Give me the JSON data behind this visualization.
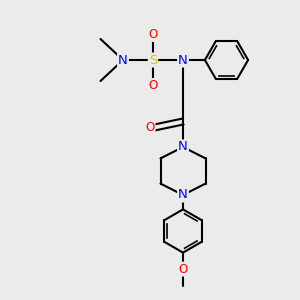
{
  "bg_color": "#ebebeb",
  "atom_colors": {
    "C": "#000000",
    "N": "#0000ff",
    "O": "#ff0000",
    "S": "#cccc00"
  },
  "bond_color": "#000000",
  "bond_width": 1.5,
  "font_size": 8.5,
  "figsize": [
    3.0,
    3.0
  ],
  "dpi": 100
}
